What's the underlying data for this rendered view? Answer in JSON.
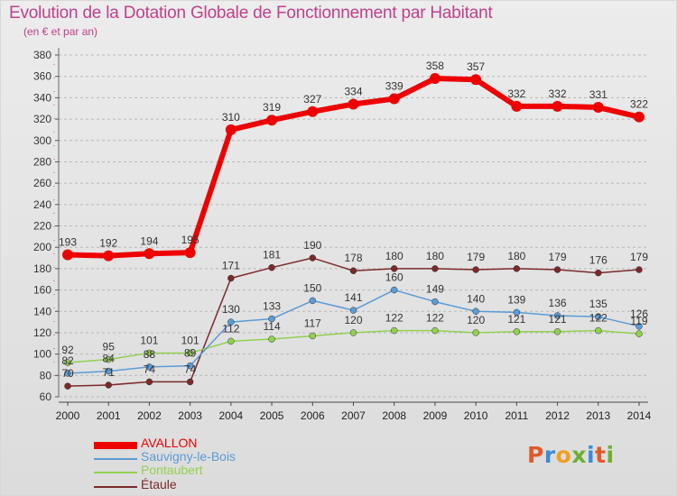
{
  "header": {
    "title": "Evolution de la Dotation Globale de Fonctionnement par Habitant",
    "subtitle": "(en € et par an)"
  },
  "logo": {
    "letters": [
      "P",
      "r",
      "o",
      "x",
      "i",
      "t",
      "i"
    ],
    "colors": [
      "#e05a2a",
      "#3a8cd8",
      "#f0a020",
      "#6cb030",
      "#3a8cd8",
      "#e05a2a",
      "#6cb030"
    ]
  },
  "chart_data": {
    "type": "line",
    "title": "Evolution de la Dotation Globale de Fonctionnement par Habitant",
    "subtitle": "(en € et par an)",
    "xlabel": "",
    "ylabel": "",
    "x": [
      "2000",
      "2001",
      "2002",
      "2003",
      "2004",
      "2005",
      "2006",
      "2007",
      "2008",
      "2009",
      "2010",
      "2011",
      "2012",
      "2013",
      "2014"
    ],
    "ylim": [
      60,
      380
    ],
    "yticks": [
      "60",
      "80",
      "100",
      "120",
      "140",
      "160",
      "180",
      "200",
      "220",
      "240",
      "260",
      "280",
      "300",
      "320",
      "340",
      "360",
      "380"
    ],
    "grid": "horizontal dashed",
    "legend_position": "bottom-left",
    "series": [
      {
        "name": "AVALLON",
        "color": "#ee0000",
        "values": [
          193,
          192,
          194,
          195,
          310,
          319,
          327,
          334,
          339,
          358,
          357,
          332,
          332,
          331,
          322
        ],
        "labels": [
          "193",
          "192",
          "194",
          "195",
          "310",
          "319",
          "327",
          "334",
          "339",
          "358",
          "357",
          "332",
          "332",
          "331",
          "322"
        ]
      },
      {
        "name": "Sauvigny-le-Bois",
        "color": "#5b9bd5",
        "values": [
          82,
          84,
          88,
          89,
          130,
          133,
          150,
          141,
          160,
          149,
          140,
          139,
          136,
          135,
          126
        ],
        "labels": [
          "82",
          "84",
          "88",
          "89",
          "130",
          "133",
          "150",
          "141",
          "160",
          "149",
          "140",
          "139",
          "136",
          "135",
          "126"
        ]
      },
      {
        "name": "Pontaubert",
        "color": "#92d050",
        "values": [
          92,
          95,
          101,
          101,
          112,
          114,
          117,
          120,
          122,
          122,
          120,
          121,
          121,
          122,
          119
        ],
        "labels": [
          "92",
          "95",
          "101",
          "101",
          "112",
          "114",
          "117",
          "120",
          "122",
          "122",
          "120",
          "121",
          "121",
          "122",
          "119"
        ]
      },
      {
        "name": "Étaule",
        "color": "#7b2a2a",
        "values": [
          70,
          71,
          74,
          74,
          171,
          181,
          190,
          178,
          180,
          180,
          179,
          180,
          179,
          176,
          179
        ],
        "labels": [
          "70",
          "71",
          "74",
          "74",
          "171",
          "181",
          "190",
          "178",
          "180",
          "180",
          "179",
          "180",
          "179",
          "176",
          "179"
        ]
      }
    ]
  }
}
